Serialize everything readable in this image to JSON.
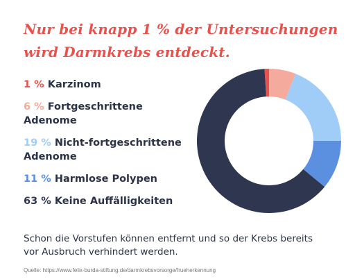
{
  "title": "Nur bei knapp 1 % der Untersuchungen wird Darmkrebs entdeckt.",
  "note": "Schon die Vorstufen können entfernt und so der Krebs bereits vor Ausbruch verhindert werden.",
  "source": "Quelle: https://www.felix-burda-stiftung.de/darmkrebsvorsorge/frueherkennung",
  "chart_data": {
    "type": "pie",
    "style": "donut",
    "title": "",
    "categories": [
      "Karzinom",
      "Fortgeschrittene Adenome",
      "Nicht-fortgeschrittene Adenome",
      "Harmlose Polypen",
      "Keine Auffälligkeiten"
    ],
    "values": [
      1,
      6,
      19,
      11,
      63
    ],
    "unit": "%",
    "colors": [
      "#e8524d",
      "#f4aa9c",
      "#9fcdf8",
      "#5b8fe0",
      "#2e3650"
    ],
    "legend": [
      {
        "pct": "1 %",
        "label": "Karzinom"
      },
      {
        "pct": "6 %",
        "label": "Fortgeschrittene Adenome"
      },
      {
        "pct": "19 %",
        "label": "Nicht-fortgeschrittene Adenome"
      },
      {
        "pct": "11 %",
        "label": "Harmlose Polypen"
      },
      {
        "pct": "63 %",
        "label": "Keine Auffälligkeiten"
      }
    ],
    "legend_position": "left"
  }
}
